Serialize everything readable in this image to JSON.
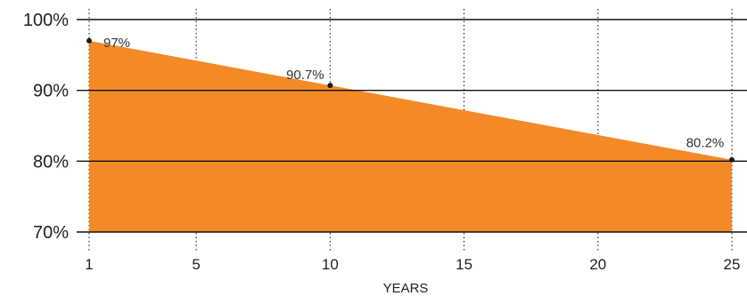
{
  "chart_data": {
    "type": "area",
    "title": "",
    "xlabel": "YEARS",
    "ylabel": "",
    "x_ticks": [
      1,
      5,
      10,
      15,
      20,
      25
    ],
    "x_tick_labels": [
      "1",
      "5",
      "10",
      "15",
      "20",
      "25"
    ],
    "xlim": [
      1,
      25
    ],
    "y_ticks": [
      70,
      80,
      90,
      100
    ],
    "y_tick_labels": [
      "70%",
      "80%",
      "90%",
      "100%"
    ],
    "ylim": [
      70,
      100
    ],
    "grid": {
      "horizontal": "solid",
      "vertical": "dotted"
    },
    "legend": "none",
    "series": [
      {
        "x": [
          1,
          10,
          25
        ],
        "values": [
          97,
          90.7,
          80.2
        ],
        "labels": [
          "97%",
          "90.7%",
          "80.2%"
        ],
        "color": "#f48a27"
      }
    ]
  }
}
